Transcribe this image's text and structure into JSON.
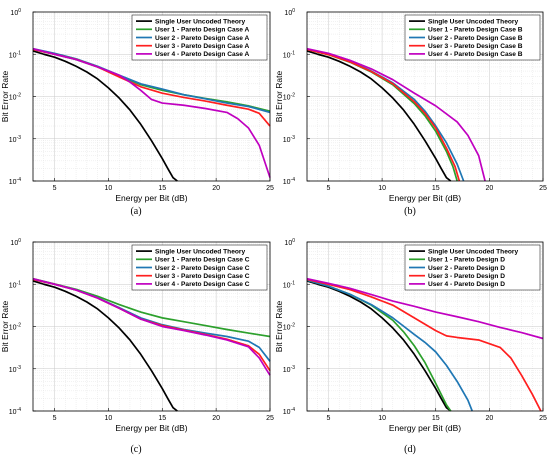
{
  "chart_data": [
    {
      "type": "line",
      "caption": "(a)",
      "xlabel": "Energy per Bit (dB)",
      "ylabel": "Bit Error Rate",
      "xlim": [
        3,
        25
      ],
      "ylim": [
        0.0001,
        1
      ],
      "yscale": "log",
      "xticks": [
        5,
        10,
        15,
        20,
        25
      ],
      "yticks": [
        {
          "v": 0.0001,
          "e": "-4"
        },
        {
          "v": 0.001,
          "e": "-3"
        },
        {
          "v": 0.01,
          "e": "-2"
        },
        {
          "v": 0.1,
          "e": "-1"
        },
        {
          "v": 1,
          "e": "0"
        }
      ],
      "grid": true,
      "legend": "top-right",
      "series": [
        {
          "name": "Single User Uncoded Theory",
          "color": "#000000",
          "x": [
            3,
            4,
            5,
            6,
            7,
            8,
            9,
            10,
            11,
            12,
            13,
            14,
            15,
            15.5,
            16,
            16.4
          ],
          "y": [
            0.12,
            0.1,
            0.085,
            0.068,
            0.052,
            0.038,
            0.026,
            0.016,
            0.0092,
            0.0048,
            0.0022,
            0.0009,
            0.00034,
            0.0002,
            0.00012,
            0.0001
          ]
        },
        {
          "name": "User 1 - Pareto Design Case A",
          "color": "#2ca02c",
          "x": [
            3,
            5,
            7,
            9,
            11,
            13,
            15,
            17,
            19,
            21,
            23,
            25
          ],
          "y": [
            0.13,
            0.1,
            0.075,
            0.05,
            0.031,
            0.019,
            0.014,
            0.011,
            0.009,
            0.0075,
            0.006,
            0.0045
          ]
        },
        {
          "name": "User 2 - Pareto Design Case A",
          "color": "#1f77b4",
          "x": [
            3,
            5,
            7,
            9,
            11,
            13,
            15,
            17,
            19,
            21,
            23,
            25
          ],
          "y": [
            0.135,
            0.105,
            0.078,
            0.052,
            0.032,
            0.02,
            0.015,
            0.011,
            0.0088,
            0.007,
            0.0058,
            0.0042
          ]
        },
        {
          "name": "User 3 - Pareto Design Case A",
          "color": "#ff1f1f",
          "x": [
            3,
            5,
            7,
            9,
            11,
            13,
            15,
            17,
            19,
            21,
            23,
            24,
            25
          ],
          "y": [
            0.13,
            0.1,
            0.076,
            0.05,
            0.029,
            0.017,
            0.012,
            0.0095,
            0.0078,
            0.0062,
            0.005,
            0.004,
            0.002
          ]
        },
        {
          "name": "User 4 - Pareto Design Case A",
          "color": "#c000c0",
          "x": [
            3,
            5,
            7,
            9,
            11,
            12,
            13,
            14,
            15,
            17,
            19,
            21,
            22,
            23,
            24,
            25
          ],
          "y": [
            0.135,
            0.1,
            0.075,
            0.05,
            0.032,
            0.022,
            0.014,
            0.0085,
            0.007,
            0.0062,
            0.0052,
            0.0042,
            0.003,
            0.0018,
            0.0007,
            0.00012
          ]
        }
      ]
    },
    {
      "type": "line",
      "caption": "(b)",
      "xlabel": "Energy per Bit (dB)",
      "ylabel": "Bit Error Rate",
      "xlim": [
        3,
        25
      ],
      "ylim": [
        0.0001,
        1
      ],
      "yscale": "log",
      "xticks": [
        5,
        10,
        15,
        20,
        25
      ],
      "yticks": [
        {
          "v": 0.0001,
          "e": "-4"
        },
        {
          "v": 0.001,
          "e": "-3"
        },
        {
          "v": 0.01,
          "e": "-2"
        },
        {
          "v": 0.1,
          "e": "-1"
        },
        {
          "v": 1,
          "e": "0"
        }
      ],
      "grid": true,
      "legend": "top-right",
      "series": [
        {
          "name": "Single User Uncoded Theory",
          "color": "#000000",
          "x": [
            3,
            4,
            5,
            6,
            7,
            8,
            9,
            10,
            11,
            12,
            13,
            14,
            15,
            15.5,
            16,
            16.4
          ],
          "y": [
            0.12,
            0.1,
            0.085,
            0.068,
            0.052,
            0.038,
            0.026,
            0.016,
            0.0092,
            0.0048,
            0.0022,
            0.0009,
            0.00034,
            0.0002,
            0.00012,
            0.0001
          ]
        },
        {
          "name": "User 1 - Pareto Design Case B",
          "color": "#2ca02c",
          "x": [
            3,
            5,
            7,
            9,
            11,
            13,
            14,
            15,
            16,
            16.6,
            17
          ],
          "y": [
            0.13,
            0.098,
            0.065,
            0.038,
            0.019,
            0.0068,
            0.0035,
            0.0015,
            0.0005,
            0.00022,
            0.0001
          ]
        },
        {
          "name": "User 2 - Pareto Design Case B",
          "color": "#1f77b4",
          "x": [
            3,
            5,
            7,
            9,
            11,
            13,
            14,
            15,
            16,
            17,
            17.6
          ],
          "y": [
            0.13,
            0.1,
            0.068,
            0.04,
            0.021,
            0.0085,
            0.0045,
            0.002,
            0.0008,
            0.00025,
            0.0001
          ]
        },
        {
          "name": "User 3 - Pareto Design Case B",
          "color": "#ff1f1f",
          "x": [
            3,
            5,
            7,
            9,
            11,
            13,
            14,
            15,
            16,
            16.8,
            17.2
          ],
          "y": [
            0.13,
            0.098,
            0.066,
            0.039,
            0.02,
            0.0075,
            0.004,
            0.0018,
            0.0006,
            0.00022,
            0.0001
          ]
        },
        {
          "name": "User 4 - Pareto Design Case B",
          "color": "#c000c0",
          "x": [
            3,
            5,
            7,
            9,
            11,
            13,
            15,
            17,
            18,
            19,
            19.6
          ],
          "y": [
            0.135,
            0.105,
            0.072,
            0.045,
            0.025,
            0.012,
            0.006,
            0.0025,
            0.0012,
            0.0004,
            0.0001
          ]
        }
      ]
    },
    {
      "type": "line",
      "caption": "(c)",
      "xlabel": "Energy per Bit (dB)",
      "ylabel": "Bit Error Rate",
      "xlim": [
        3,
        25
      ],
      "ylim": [
        0.0001,
        1
      ],
      "yscale": "log",
      "xticks": [
        5,
        10,
        15,
        20,
        25
      ],
      "yticks": [
        {
          "v": 0.0001,
          "e": "-4"
        },
        {
          "v": 0.001,
          "e": "-3"
        },
        {
          "v": 0.01,
          "e": "-2"
        },
        {
          "v": 0.1,
          "e": "-1"
        },
        {
          "v": 1,
          "e": "0"
        }
      ],
      "grid": true,
      "legend": "top-right",
      "series": [
        {
          "name": "Single User Uncoded Theory",
          "color": "#000000",
          "x": [
            3,
            4,
            5,
            6,
            7,
            8,
            9,
            10,
            11,
            12,
            13,
            14,
            15,
            15.5,
            16,
            16.4
          ],
          "y": [
            0.12,
            0.1,
            0.085,
            0.068,
            0.052,
            0.038,
            0.026,
            0.016,
            0.0092,
            0.0048,
            0.0022,
            0.0009,
            0.00034,
            0.0002,
            0.00012,
            0.0001
          ]
        },
        {
          "name": "User 1 - Pareto Design Case C",
          "color": "#2ca02c",
          "x": [
            3,
            5,
            7,
            9,
            11,
            13,
            15,
            17,
            19,
            21,
            23,
            25
          ],
          "y": [
            0.135,
            0.102,
            0.076,
            0.052,
            0.033,
            0.022,
            0.016,
            0.013,
            0.0105,
            0.0085,
            0.007,
            0.0058
          ]
        },
        {
          "name": "User 2 - Pareto Design Case C",
          "color": "#1f77b4",
          "x": [
            3,
            5,
            7,
            9,
            11,
            13,
            15,
            17,
            19,
            21,
            23,
            24,
            25
          ],
          "y": [
            0.13,
            0.1,
            0.074,
            0.048,
            0.028,
            0.016,
            0.011,
            0.0085,
            0.007,
            0.0058,
            0.0045,
            0.0032,
            0.0015
          ]
        },
        {
          "name": "User 3 - Pareto Design Case C",
          "color": "#ff1f1f",
          "x": [
            3,
            5,
            7,
            9,
            11,
            13,
            15,
            17,
            19,
            21,
            23,
            24,
            25
          ],
          "y": [
            0.13,
            0.1,
            0.073,
            0.047,
            0.027,
            0.015,
            0.0105,
            0.0082,
            0.0065,
            0.005,
            0.0035,
            0.0022,
            0.0009
          ]
        },
        {
          "name": "User 4 - Pareto Design Case C",
          "color": "#c000c0",
          "x": [
            3,
            5,
            7,
            9,
            11,
            13,
            15,
            17,
            19,
            21,
            23,
            24,
            25
          ],
          "y": [
            0.135,
            0.1,
            0.073,
            0.047,
            0.027,
            0.015,
            0.01,
            0.008,
            0.0063,
            0.0048,
            0.0033,
            0.0018,
            0.0007
          ]
        }
      ]
    },
    {
      "type": "line",
      "caption": "(d)",
      "xlabel": "Energy per Bit (dB)",
      "ylabel": "Bit Error Rate",
      "xlim": [
        3,
        25
      ],
      "ylim": [
        0.0001,
        1
      ],
      "yscale": "log",
      "xticks": [
        5,
        10,
        15,
        20,
        25
      ],
      "yticks": [
        {
          "v": 0.0001,
          "e": "-4"
        },
        {
          "v": 0.001,
          "e": "-3"
        },
        {
          "v": 0.01,
          "e": "-2"
        },
        {
          "v": 0.1,
          "e": "-1"
        },
        {
          "v": 1,
          "e": "0"
        }
      ],
      "grid": true,
      "legend": "top-right",
      "series": [
        {
          "name": "Single User Uncoded Theory",
          "color": "#000000",
          "x": [
            3,
            4,
            5,
            6,
            7,
            8,
            9,
            10,
            11,
            12,
            13,
            14,
            15,
            15.5,
            16,
            16.4
          ],
          "y": [
            0.12,
            0.1,
            0.085,
            0.068,
            0.052,
            0.038,
            0.026,
            0.016,
            0.0092,
            0.0048,
            0.0022,
            0.0009,
            0.00034,
            0.0002,
            0.00012,
            0.0001
          ]
        },
        {
          "name": "User 1 - Pareto Design D",
          "color": "#2ca02c",
          "x": [
            3,
            5,
            7,
            9,
            11,
            12,
            13,
            14,
            15,
            16,
            16.4
          ],
          "y": [
            0.125,
            0.09,
            0.058,
            0.032,
            0.014,
            0.0075,
            0.0035,
            0.0014,
            0.00045,
            0.00014,
            0.0001
          ]
        },
        {
          "name": "User 2 - Pareto Design D",
          "color": "#1f77b4",
          "x": [
            3,
            5,
            7,
            9,
            11,
            13,
            14,
            15,
            16,
            17,
            18,
            18.4
          ],
          "y": [
            0.125,
            0.09,
            0.058,
            0.033,
            0.016,
            0.0065,
            0.0042,
            0.0025,
            0.0012,
            0.0005,
            0.00018,
            0.0001
          ]
        },
        {
          "name": "User 3 - Pareto Design D",
          "color": "#ff1f1f",
          "x": [
            3,
            5,
            7,
            9,
            11,
            13,
            15,
            16,
            17,
            19,
            21,
            22,
            23,
            24,
            24.8
          ],
          "y": [
            0.13,
            0.1,
            0.075,
            0.05,
            0.032,
            0.016,
            0.008,
            0.006,
            0.0055,
            0.0048,
            0.0032,
            0.0018,
            0.0007,
            0.00025,
            0.0001
          ]
        },
        {
          "name": "User 4 - Pareto Design D",
          "color": "#c000c0",
          "x": [
            3,
            5,
            7,
            9,
            11,
            13,
            15,
            17,
            19,
            21,
            23,
            25
          ],
          "y": [
            0.135,
            0.105,
            0.08,
            0.057,
            0.04,
            0.03,
            0.022,
            0.017,
            0.013,
            0.0095,
            0.0072,
            0.0052
          ]
        }
      ]
    }
  ]
}
